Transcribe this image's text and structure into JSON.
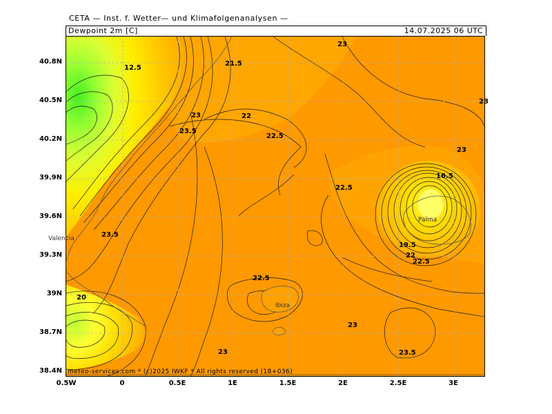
{
  "header": {
    "org": "CETA — Inst. f. Wetter— und Klimafolgenanalysen —",
    "field": "Dewpoint 2m [C]",
    "valid_time": "14.07.2025 06 UTC"
  },
  "axes": {
    "lat_ticks": [
      "40.8N",
      "40.5N",
      "40.2N",
      "39.9N",
      "39.6N",
      "39.3N",
      "39N",
      "38.7N",
      "38.4N"
    ],
    "lon_ticks": [
      "0.5W",
      "0",
      "0.5E",
      "1E",
      "1.5E",
      "2E",
      "2.5E",
      "3E"
    ]
  },
  "places": {
    "valencia": "Valencia",
    "ibiza": "Ibiza",
    "palma": "Palma"
  },
  "contour_labels": {
    "l1": "12.5",
    "l2": "21.5",
    "l3": "23",
    "l4": "22",
    "l5": "23.5",
    "l6": "22.5",
    "l7": "23",
    "l8": "23.5",
    "l9": "20",
    "l10": "22.5",
    "l11": "23",
    "l12": "23",
    "l13": "23.5",
    "l14": "22.5",
    "l15": "22.5",
    "l16": "16.5",
    "l17": "19.5",
    "l18": "22",
    "l19": "23",
    "l20": "23"
  },
  "footer": "meteo-services.com * (c)2025 IWKF * All rights reserved (18+036)",
  "colors": {
    "base_orange": "#ff9900",
    "light_orange": "#ffae00",
    "yellow": "#ffd400",
    "light_yellow": "#ffff33",
    "yellow_green": "#ccff33",
    "green": "#66ff33",
    "grid": "#b0b0b0"
  }
}
